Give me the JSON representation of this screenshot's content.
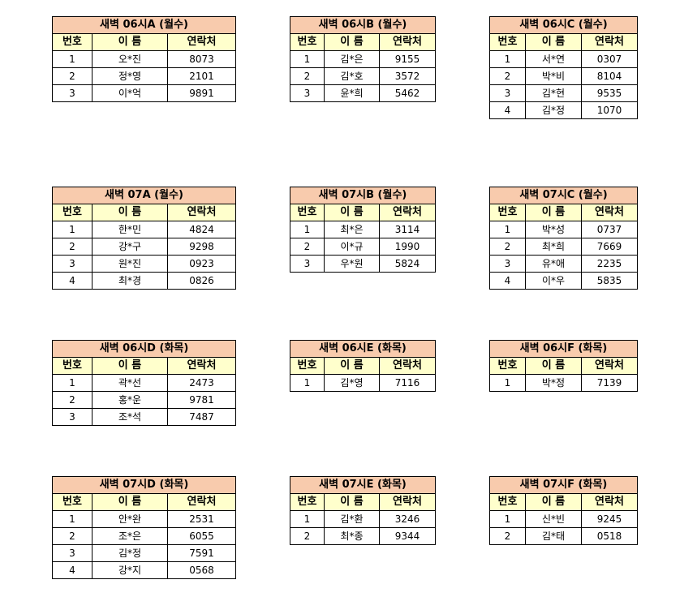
{
  "colors": {
    "title_bg": "#f8cbad",
    "header_bg": "#ffffcc",
    "border": "#000000"
  },
  "headers": [
    "번호",
    "이 름",
    "연락처"
  ],
  "tables": [
    {
      "title": "새벽 06시A (월수)",
      "rows": [
        [
          "1",
          "오*진",
          "8073"
        ],
        [
          "2",
          "정*영",
          "2101"
        ],
        [
          "3",
          "이*억",
          "9891"
        ]
      ]
    },
    {
      "title": "새벽 06시B (월수)",
      "rows": [
        [
          "1",
          "김*은",
          "9155"
        ],
        [
          "2",
          "김*호",
          "3572"
        ],
        [
          "3",
          "윤*희",
          "5462"
        ]
      ]
    },
    {
      "title": "새벽 06시C (월수)",
      "rows": [
        [
          "1",
          "서*연",
          "0307"
        ],
        [
          "2",
          "박*비",
          "8104"
        ],
        [
          "3",
          "김*현",
          "9535"
        ],
        [
          "4",
          "김*정",
          "1070"
        ]
      ]
    },
    {
      "title": "새벽 07A (월수)",
      "rows": [
        [
          "1",
          "한*민",
          "4824"
        ],
        [
          "2",
          "강*구",
          "9298"
        ],
        [
          "3",
          "원*진",
          "0923"
        ],
        [
          "4",
          "최*경",
          "0826"
        ]
      ]
    },
    {
      "title": "새벽 07시B (월수)",
      "rows": [
        [
          "1",
          "최*은",
          "3114"
        ],
        [
          "2",
          "이*규",
          "1990"
        ],
        [
          "3",
          "우*원",
          "5824"
        ]
      ]
    },
    {
      "title": "새벽 07시C (월수)",
      "rows": [
        [
          "1",
          "박*성",
          "0737"
        ],
        [
          "2",
          "최*희",
          "7669"
        ],
        [
          "3",
          "유*애",
          "2235"
        ],
        [
          "4",
          "이*우",
          "5835"
        ]
      ]
    },
    {
      "title": "새벽 06시D (화목)",
      "rows": [
        [
          "1",
          "곽*선",
          "2473"
        ],
        [
          "2",
          "홍*운",
          "9781"
        ],
        [
          "3",
          "조*석",
          "7487"
        ]
      ]
    },
    {
      "title": "새벽 06시E (화목)",
      "rows": [
        [
          "1",
          "김*영",
          "7116"
        ]
      ]
    },
    {
      "title": "새벽 06시F (화목)",
      "rows": [
        [
          "1",
          "박*정",
          "7139"
        ]
      ]
    },
    {
      "title": "새벽 07시D (화목)",
      "rows": [
        [
          "1",
          "안*완",
          "2531"
        ],
        [
          "2",
          "조*은",
          "6055"
        ],
        [
          "3",
          "김*정",
          "7591"
        ],
        [
          "4",
          "강*지",
          "0568"
        ]
      ]
    },
    {
      "title": "새벽 07시E (화목)",
      "rows": [
        [
          "1",
          "김*환",
          "3246"
        ],
        [
          "2",
          "최*종",
          "9344"
        ]
      ]
    },
    {
      "title": "새벽 07시F (화목)",
      "rows": [
        [
          "1",
          "신*빈",
          "9245"
        ],
        [
          "2",
          "김*태",
          "0518"
        ]
      ]
    }
  ]
}
